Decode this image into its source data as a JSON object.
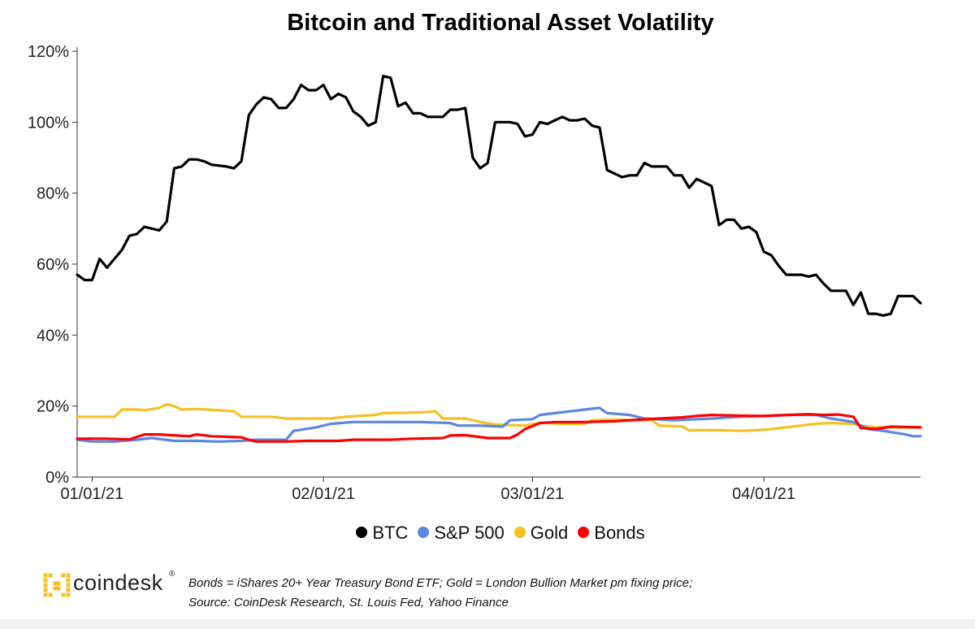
{
  "chart_data": {
    "type": "line",
    "title": "Bitcoin and Traditional Asset Volatility",
    "xlabel": "",
    "ylabel": "",
    "ylim": [
      0,
      120
    ],
    "y_ticks": [
      "0%",
      "20%",
      "40%",
      "60%",
      "80%",
      "100%",
      "120%"
    ],
    "y_tick_values": [
      0,
      20,
      40,
      60,
      80,
      100,
      120
    ],
    "x_range": [
      "2020-12-30",
      "2021-04-22"
    ],
    "x_ticks": [
      "01/01/21",
      "02/01/21",
      "03/01/21",
      "04/01/21"
    ],
    "x_tick_dates": [
      "2021-01-01",
      "2021-02-01",
      "2021-03-01",
      "2021-04-01"
    ],
    "grid": false,
    "legend_position": "bottom",
    "series": [
      {
        "name": "BTC",
        "color": "#000000",
        "points": [
          [
            "2020-12-30",
            57
          ],
          [
            "2020-12-31",
            55.5
          ],
          [
            "2021-01-01",
            55.5
          ],
          [
            "2021-01-02",
            61.5
          ],
          [
            "2021-01-03",
            59
          ],
          [
            "2021-01-05",
            64
          ],
          [
            "2021-01-06",
            68
          ],
          [
            "2021-01-07",
            68.5
          ],
          [
            "2021-01-08",
            70.5
          ],
          [
            "2021-01-09",
            70
          ],
          [
            "2021-01-10",
            69.5
          ],
          [
            "2021-01-11",
            72
          ],
          [
            "2021-01-12",
            87
          ],
          [
            "2021-01-13",
            87.5
          ],
          [
            "2021-01-14",
            89.5
          ],
          [
            "2021-01-15",
            89.5
          ],
          [
            "2021-01-16",
            89
          ],
          [
            "2021-01-17",
            88
          ],
          [
            "2021-01-19",
            87.5
          ],
          [
            "2021-01-20",
            87
          ],
          [
            "2021-01-21",
            89
          ],
          [
            "2021-01-22",
            102
          ],
          [
            "2021-01-23",
            105
          ],
          [
            "2021-01-24",
            107
          ],
          [
            "2021-01-25",
            106.5
          ],
          [
            "2021-01-26",
            104
          ],
          [
            "2021-01-27",
            104
          ],
          [
            "2021-01-28",
            106.5
          ],
          [
            "2021-01-29",
            110.5
          ],
          [
            "2021-01-30",
            109
          ],
          [
            "2021-01-31",
            109
          ],
          [
            "2021-02-01",
            110.5
          ],
          [
            "2021-02-02",
            106.5
          ],
          [
            "2021-02-03",
            108
          ],
          [
            "2021-02-04",
            107
          ],
          [
            "2021-02-05",
            103
          ],
          [
            "2021-02-06",
            101.5
          ],
          [
            "2021-02-07",
            99
          ],
          [
            "2021-02-08",
            100
          ],
          [
            "2021-02-09",
            113
          ],
          [
            "2021-02-10",
            112.5
          ],
          [
            "2021-02-11",
            104.5
          ],
          [
            "2021-02-12",
            105.5
          ],
          [
            "2021-02-13",
            102.5
          ],
          [
            "2021-02-14",
            102.5
          ],
          [
            "2021-02-15",
            101.5
          ],
          [
            "2021-02-17",
            101.5
          ],
          [
            "2021-02-18",
            103.5
          ],
          [
            "2021-02-19",
            103.5
          ],
          [
            "2021-02-20",
            104
          ],
          [
            "2021-02-21",
            90
          ],
          [
            "2021-02-22",
            87
          ],
          [
            "2021-02-23",
            88.5
          ],
          [
            "2021-02-24",
            100
          ],
          [
            "2021-02-25",
            100
          ],
          [
            "2021-02-26",
            100
          ],
          [
            "2021-02-27",
            99.5
          ],
          [
            "2021-02-28",
            96
          ],
          [
            "2021-03-01",
            96.5
          ],
          [
            "2021-03-02",
            100
          ],
          [
            "2021-03-03",
            99.5
          ],
          [
            "2021-03-04",
            100.5
          ],
          [
            "2021-03-05",
            101.5
          ],
          [
            "2021-03-06",
            100.5
          ],
          [
            "2021-03-07",
            100.5
          ],
          [
            "2021-03-08",
            101
          ],
          [
            "2021-03-09",
            99
          ],
          [
            "2021-03-10",
            98.5
          ],
          [
            "2021-03-11",
            86.5
          ],
          [
            "2021-03-12",
            85.5
          ],
          [
            "2021-03-13",
            84.5
          ],
          [
            "2021-03-14",
            85
          ],
          [
            "2021-03-15",
            85
          ],
          [
            "2021-03-16",
            88.5
          ],
          [
            "2021-03-17",
            87.5
          ],
          [
            "2021-03-18",
            87.5
          ],
          [
            "2021-03-19",
            87.5
          ],
          [
            "2021-03-20",
            85
          ],
          [
            "2021-03-21",
            85
          ],
          [
            "2021-03-22",
            81.5
          ],
          [
            "2021-03-23",
            84
          ],
          [
            "2021-03-24",
            83
          ],
          [
            "2021-03-25",
            82
          ],
          [
            "2021-03-26",
            71
          ],
          [
            "2021-03-27",
            72.5
          ],
          [
            "2021-03-28",
            72.5
          ],
          [
            "2021-03-29",
            70
          ],
          [
            "2021-03-30",
            70.5
          ],
          [
            "2021-03-31",
            69
          ],
          [
            "2021-04-01",
            63.5
          ],
          [
            "2021-04-02",
            62.5
          ],
          [
            "2021-04-03",
            59.5
          ],
          [
            "2021-04-04",
            57
          ],
          [
            "2021-04-06",
            57
          ],
          [
            "2021-04-07",
            56.5
          ],
          [
            "2021-04-08",
            57
          ],
          [
            "2021-04-09",
            54.5
          ],
          [
            "2021-04-10",
            52.5
          ],
          [
            "2021-04-11",
            52.5
          ],
          [
            "2021-04-12",
            52.5
          ],
          [
            "2021-04-13",
            48.5
          ],
          [
            "2021-04-14",
            52
          ],
          [
            "2021-04-15",
            46
          ],
          [
            "2021-04-16",
            46
          ],
          [
            "2021-04-17",
            45.5
          ],
          [
            "2021-04-18",
            46
          ],
          [
            "2021-04-19",
            51
          ],
          [
            "2021-04-20",
            51
          ],
          [
            "2021-04-21",
            51
          ],
          [
            "2021-04-22",
            49
          ]
        ]
      },
      {
        "name": "S&P 500",
        "color": "#5b87e0",
        "points": [
          [
            "2020-12-30",
            10.5
          ],
          [
            "2021-01-01",
            10
          ],
          [
            "2021-01-04",
            10
          ],
          [
            "2021-01-07",
            10.5
          ],
          [
            "2021-01-09",
            11
          ],
          [
            "2021-01-12",
            10.2
          ],
          [
            "2021-01-15",
            10.2
          ],
          [
            "2021-01-18",
            10
          ],
          [
            "2021-01-21",
            10.2
          ],
          [
            "2021-01-23",
            10.5
          ],
          [
            "2021-01-27",
            10.5
          ],
          [
            "2021-01-28",
            13
          ],
          [
            "2021-01-31",
            14
          ],
          [
            "2021-02-02",
            15
          ],
          [
            "2021-02-05",
            15.5
          ],
          [
            "2021-02-10",
            15.5
          ],
          [
            "2021-02-14",
            15.5
          ],
          [
            "2021-02-18",
            15.2
          ],
          [
            "2021-02-19",
            14.5
          ],
          [
            "2021-02-22",
            14.5
          ],
          [
            "2021-02-25",
            14.2
          ],
          [
            "2021-02-26",
            16
          ],
          [
            "2021-03-01",
            16.3
          ],
          [
            "2021-03-02",
            17.5
          ],
          [
            "2021-03-04",
            18
          ],
          [
            "2021-03-06",
            18.5
          ],
          [
            "2021-03-08",
            19
          ],
          [
            "2021-03-10",
            19.5
          ],
          [
            "2021-03-11",
            18
          ],
          [
            "2021-03-14",
            17.5
          ],
          [
            "2021-03-16",
            16.5
          ],
          [
            "2021-03-20",
            16
          ],
          [
            "2021-03-25",
            16.5
          ],
          [
            "2021-03-29",
            17
          ],
          [
            "2021-04-01",
            17.2
          ],
          [
            "2021-04-05",
            17.5
          ],
          [
            "2021-04-08",
            17.5
          ],
          [
            "2021-04-10",
            16.5
          ],
          [
            "2021-04-13",
            15.5
          ],
          [
            "2021-04-15",
            13.5
          ],
          [
            "2021-04-17",
            13
          ],
          [
            "2021-04-20",
            12
          ],
          [
            "2021-04-21",
            11.5
          ],
          [
            "2021-04-22",
            11.5
          ]
        ]
      },
      {
        "name": "Gold",
        "color": "#f6c023",
        "points": [
          [
            "2020-12-30",
            17
          ],
          [
            "2021-01-04",
            17
          ],
          [
            "2021-01-05",
            19
          ],
          [
            "2021-01-07",
            19
          ],
          [
            "2021-01-08",
            18.8
          ],
          [
            "2021-01-10",
            19.5
          ],
          [
            "2021-01-11",
            20.5
          ],
          [
            "2021-01-12",
            20
          ],
          [
            "2021-01-13",
            19
          ],
          [
            "2021-01-15",
            19.2
          ],
          [
            "2021-01-18",
            18.8
          ],
          [
            "2021-01-20",
            18.5
          ],
          [
            "2021-01-21",
            17
          ],
          [
            "2021-01-25",
            17
          ],
          [
            "2021-01-27",
            16.5
          ],
          [
            "2021-02-02",
            16.5
          ],
          [
            "2021-02-04",
            17
          ],
          [
            "2021-02-08",
            17.5
          ],
          [
            "2021-02-09",
            18
          ],
          [
            "2021-02-14",
            18.2
          ],
          [
            "2021-02-16",
            18.5
          ],
          [
            "2021-02-17",
            16.5
          ],
          [
            "2021-02-20",
            16.5
          ],
          [
            "2021-02-22",
            15.5
          ],
          [
            "2021-02-24",
            14.8
          ],
          [
            "2021-02-28",
            14.5
          ],
          [
            "2021-03-02",
            15.3
          ],
          [
            "2021-03-05",
            15
          ],
          [
            "2021-03-08",
            15
          ],
          [
            "2021-03-09",
            16
          ],
          [
            "2021-03-12",
            16.2
          ],
          [
            "2021-03-15",
            16
          ],
          [
            "2021-03-17",
            16
          ],
          [
            "2021-03-18",
            14.5
          ],
          [
            "2021-03-21",
            14.3
          ],
          [
            "2021-03-22",
            13.2
          ],
          [
            "2021-03-26",
            13.2
          ],
          [
            "2021-03-29",
            13
          ],
          [
            "2021-03-31",
            13.2
          ],
          [
            "2021-04-02",
            13.5
          ],
          [
            "2021-04-04",
            14
          ],
          [
            "2021-04-06",
            14.5
          ],
          [
            "2021-04-08",
            15
          ],
          [
            "2021-04-10",
            15.2
          ],
          [
            "2021-04-13",
            15
          ],
          [
            "2021-04-14",
            14.5
          ],
          [
            "2021-04-16",
            14
          ],
          [
            "2021-04-19",
            14
          ],
          [
            "2021-04-22",
            14
          ]
        ]
      },
      {
        "name": "Bonds",
        "color": "#ff0000",
        "points": [
          [
            "2020-12-30",
            10.8
          ],
          [
            "2021-01-03",
            10.8
          ],
          [
            "2021-01-06",
            10.6
          ],
          [
            "2021-01-08",
            12
          ],
          [
            "2021-01-10",
            12
          ],
          [
            "2021-01-14",
            11.5
          ],
          [
            "2021-01-15",
            12
          ],
          [
            "2021-01-17",
            11.5
          ],
          [
            "2021-01-21",
            11.2
          ],
          [
            "2021-01-22",
            10.5
          ],
          [
            "2021-01-23",
            10
          ],
          [
            "2021-01-27",
            10
          ],
          [
            "2021-01-30",
            10.2
          ],
          [
            "2021-02-03",
            10.2
          ],
          [
            "2021-02-05",
            10.5
          ],
          [
            "2021-02-10",
            10.5
          ],
          [
            "2021-02-13",
            10.8
          ],
          [
            "2021-02-17",
            11
          ],
          [
            "2021-02-18",
            11.7
          ],
          [
            "2021-02-20",
            11.8
          ],
          [
            "2021-02-23",
            11
          ],
          [
            "2021-02-26",
            11
          ],
          [
            "2021-02-27",
            12
          ],
          [
            "2021-02-28",
            13.5
          ],
          [
            "2021-03-02",
            15.2
          ],
          [
            "2021-03-04",
            15.5
          ],
          [
            "2021-03-08",
            15.5
          ],
          [
            "2021-03-12",
            15.7
          ],
          [
            "2021-03-14",
            16
          ],
          [
            "2021-03-18",
            16.5
          ],
          [
            "2021-03-21",
            16.8
          ],
          [
            "2021-03-23",
            17.2
          ],
          [
            "2021-03-25",
            17.5
          ],
          [
            "2021-03-29",
            17.3
          ],
          [
            "2021-04-01",
            17.2
          ],
          [
            "2021-04-04",
            17.5
          ],
          [
            "2021-04-07",
            17.7
          ],
          [
            "2021-04-09",
            17.5
          ],
          [
            "2021-04-11",
            17.6
          ],
          [
            "2021-04-13",
            17
          ],
          [
            "2021-04-14",
            13.8
          ],
          [
            "2021-04-16",
            13.5
          ],
          [
            "2021-04-18",
            14.2
          ],
          [
            "2021-04-22",
            14
          ]
        ]
      }
    ]
  },
  "legend": [
    {
      "label": "BTC",
      "color": "#000000"
    },
    {
      "label": "S&P 500",
      "color": "#5b87e0"
    },
    {
      "label": "Gold",
      "color": "#f6c023"
    },
    {
      "label": "Bonds",
      "color": "#ff0000"
    }
  ],
  "branding": {
    "logo_text": "coindesk",
    "logo_mark": "®",
    "logo_color": "#f6c023"
  },
  "footnote": {
    "line1": "Bonds = iShares 20+ Year Treasury Bond ETF;   Gold = London Bullion Market pm fixing price;",
    "line2": "Source: CoinDesk Research, St. Louis Fed, Yahoo Finance"
  }
}
